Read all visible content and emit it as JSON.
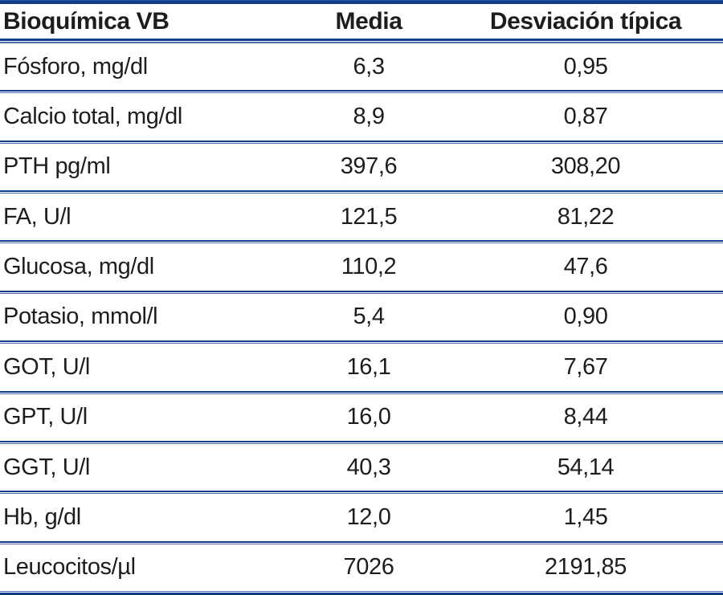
{
  "table": {
    "columns": [
      "Bioquímica VB",
      "Media",
      "Desviación típica"
    ],
    "rows": [
      {
        "label": "Fósforo, mg/dl",
        "media": "6,3",
        "sd": "0,95"
      },
      {
        "label": "Calcio total, mg/dl",
        "media": "8,9",
        "sd": "0,87"
      },
      {
        "label": "PTH pg/ml",
        "media": "397,6",
        "sd": "308,20"
      },
      {
        "label": "FA, U/l",
        "media": "121,5",
        "sd": "81,22"
      },
      {
        "label": "Glucosa, mg/dl",
        "media": "110,2",
        "sd": "47,6"
      },
      {
        "label": "Potasio, mmol/l",
        "media": "5,4",
        "sd": "0,90"
      },
      {
        "label": "GOT, U/l",
        "media": "16,1",
        "sd": "7,67"
      },
      {
        "label": "GPT, U/l",
        "media": "16,0",
        "sd": "8,44"
      },
      {
        "label": "GGT, U/l",
        "media": "40,3",
        "sd": "54,14"
      },
      {
        "label": "Hb, g/dl",
        "media": "12,0",
        "sd": "1,45"
      },
      {
        "label": "Leucocitos/µl",
        "media": "7026",
        "sd": "2191,85"
      }
    ]
  },
  "colors": {
    "rule_dark": "#123b8c",
    "rule_light": "#4e6fb3",
    "text": "#1d1d1b",
    "background": "#ffffff"
  }
}
